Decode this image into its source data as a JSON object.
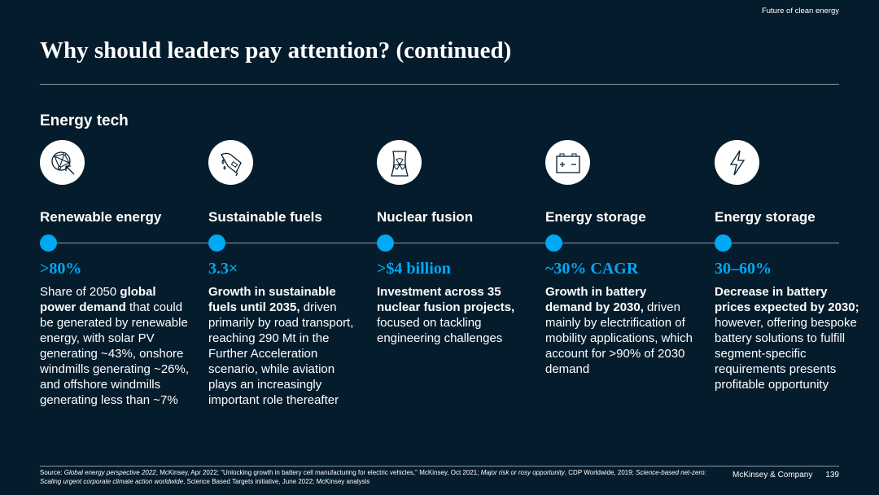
{
  "header": {
    "tag": "Future of clean energy",
    "title": "Why should leaders pay attention? (continued)"
  },
  "section": "Energy tech",
  "accent_color": "#00a9f4",
  "background_color": "#051c2c",
  "items": [
    {
      "icon": "globe-network-cursor-icon",
      "label": "Renewable energy",
      "stat": ">80%",
      "body": [
        {
          "t": "Share of 2050 ",
          "b": false
        },
        {
          "t": "global power demand",
          "b": true
        },
        {
          "t": " that could be generated by renewable energy, with solar PV generating ~43%, onshore windmills generating ~26%, and offshore windmills generating less than ~7%",
          "b": false
        }
      ]
    },
    {
      "icon": "fuel-nozzle-icon",
      "label": "Sustainable fuels",
      "stat": "3.3×",
      "body": [
        {
          "t": "Growth in sustainable fuels until 2035,",
          "b": true
        },
        {
          "t": " driven primarily by road transport, reaching 290 Mt in the Further Acceleration scenario, while aviation plays an increasingly important role thereafter",
          "b": false
        }
      ]
    },
    {
      "icon": "nuclear-plant-icon",
      "label": "Nuclear fusion",
      "stat": ">$4 billion",
      "body": [
        {
          "t": "Investment across 35 nuclear fusion projects,",
          "b": true
        },
        {
          "t": " focused on tackling engineering challenges",
          "b": false
        }
      ]
    },
    {
      "icon": "battery-icon",
      "label": "Energy storage",
      "stat": "~30% CAGR",
      "body": [
        {
          "t": "Growth in battery demand by 2030,",
          "b": true
        },
        {
          "t": " driven mainly by electrification of mobility applications, which account for >90% of 2030 demand",
          "b": false
        }
      ]
    },
    {
      "icon": "lightning-icon",
      "label": "Energy storage",
      "stat": "30–60%",
      "body": [
        {
          "t": "Decrease in battery prices expected by 2030;",
          "b": true
        },
        {
          "t": " however, offering bespoke battery solutions to fulfill segment-specific requirements presents profitable opportunity",
          "b": false
        }
      ]
    }
  ],
  "footer": {
    "source": [
      {
        "t": "Source: ",
        "i": false
      },
      {
        "t": "Global energy perspective 2022",
        "i": true
      },
      {
        "t": ", McKinsey, Apr 2022; \"Unlocking growth in battery cell manufacturing for electric vehicles,\" McKinsey, Oct 2021; ",
        "i": false
      },
      {
        "t": "Major risk or rosy opportunity",
        "i": true
      },
      {
        "t": ", CDP Worldwide, 2019; ",
        "i": false
      },
      {
        "t": "Science-based net-zero: Scaling urgent corporate climate action worldwide",
        "i": true
      },
      {
        "t": ", Science Based Targets initiative, June 2022; McKinsey analysis",
        "i": false
      }
    ],
    "brand": "McKinsey & Company",
    "page": "139"
  }
}
